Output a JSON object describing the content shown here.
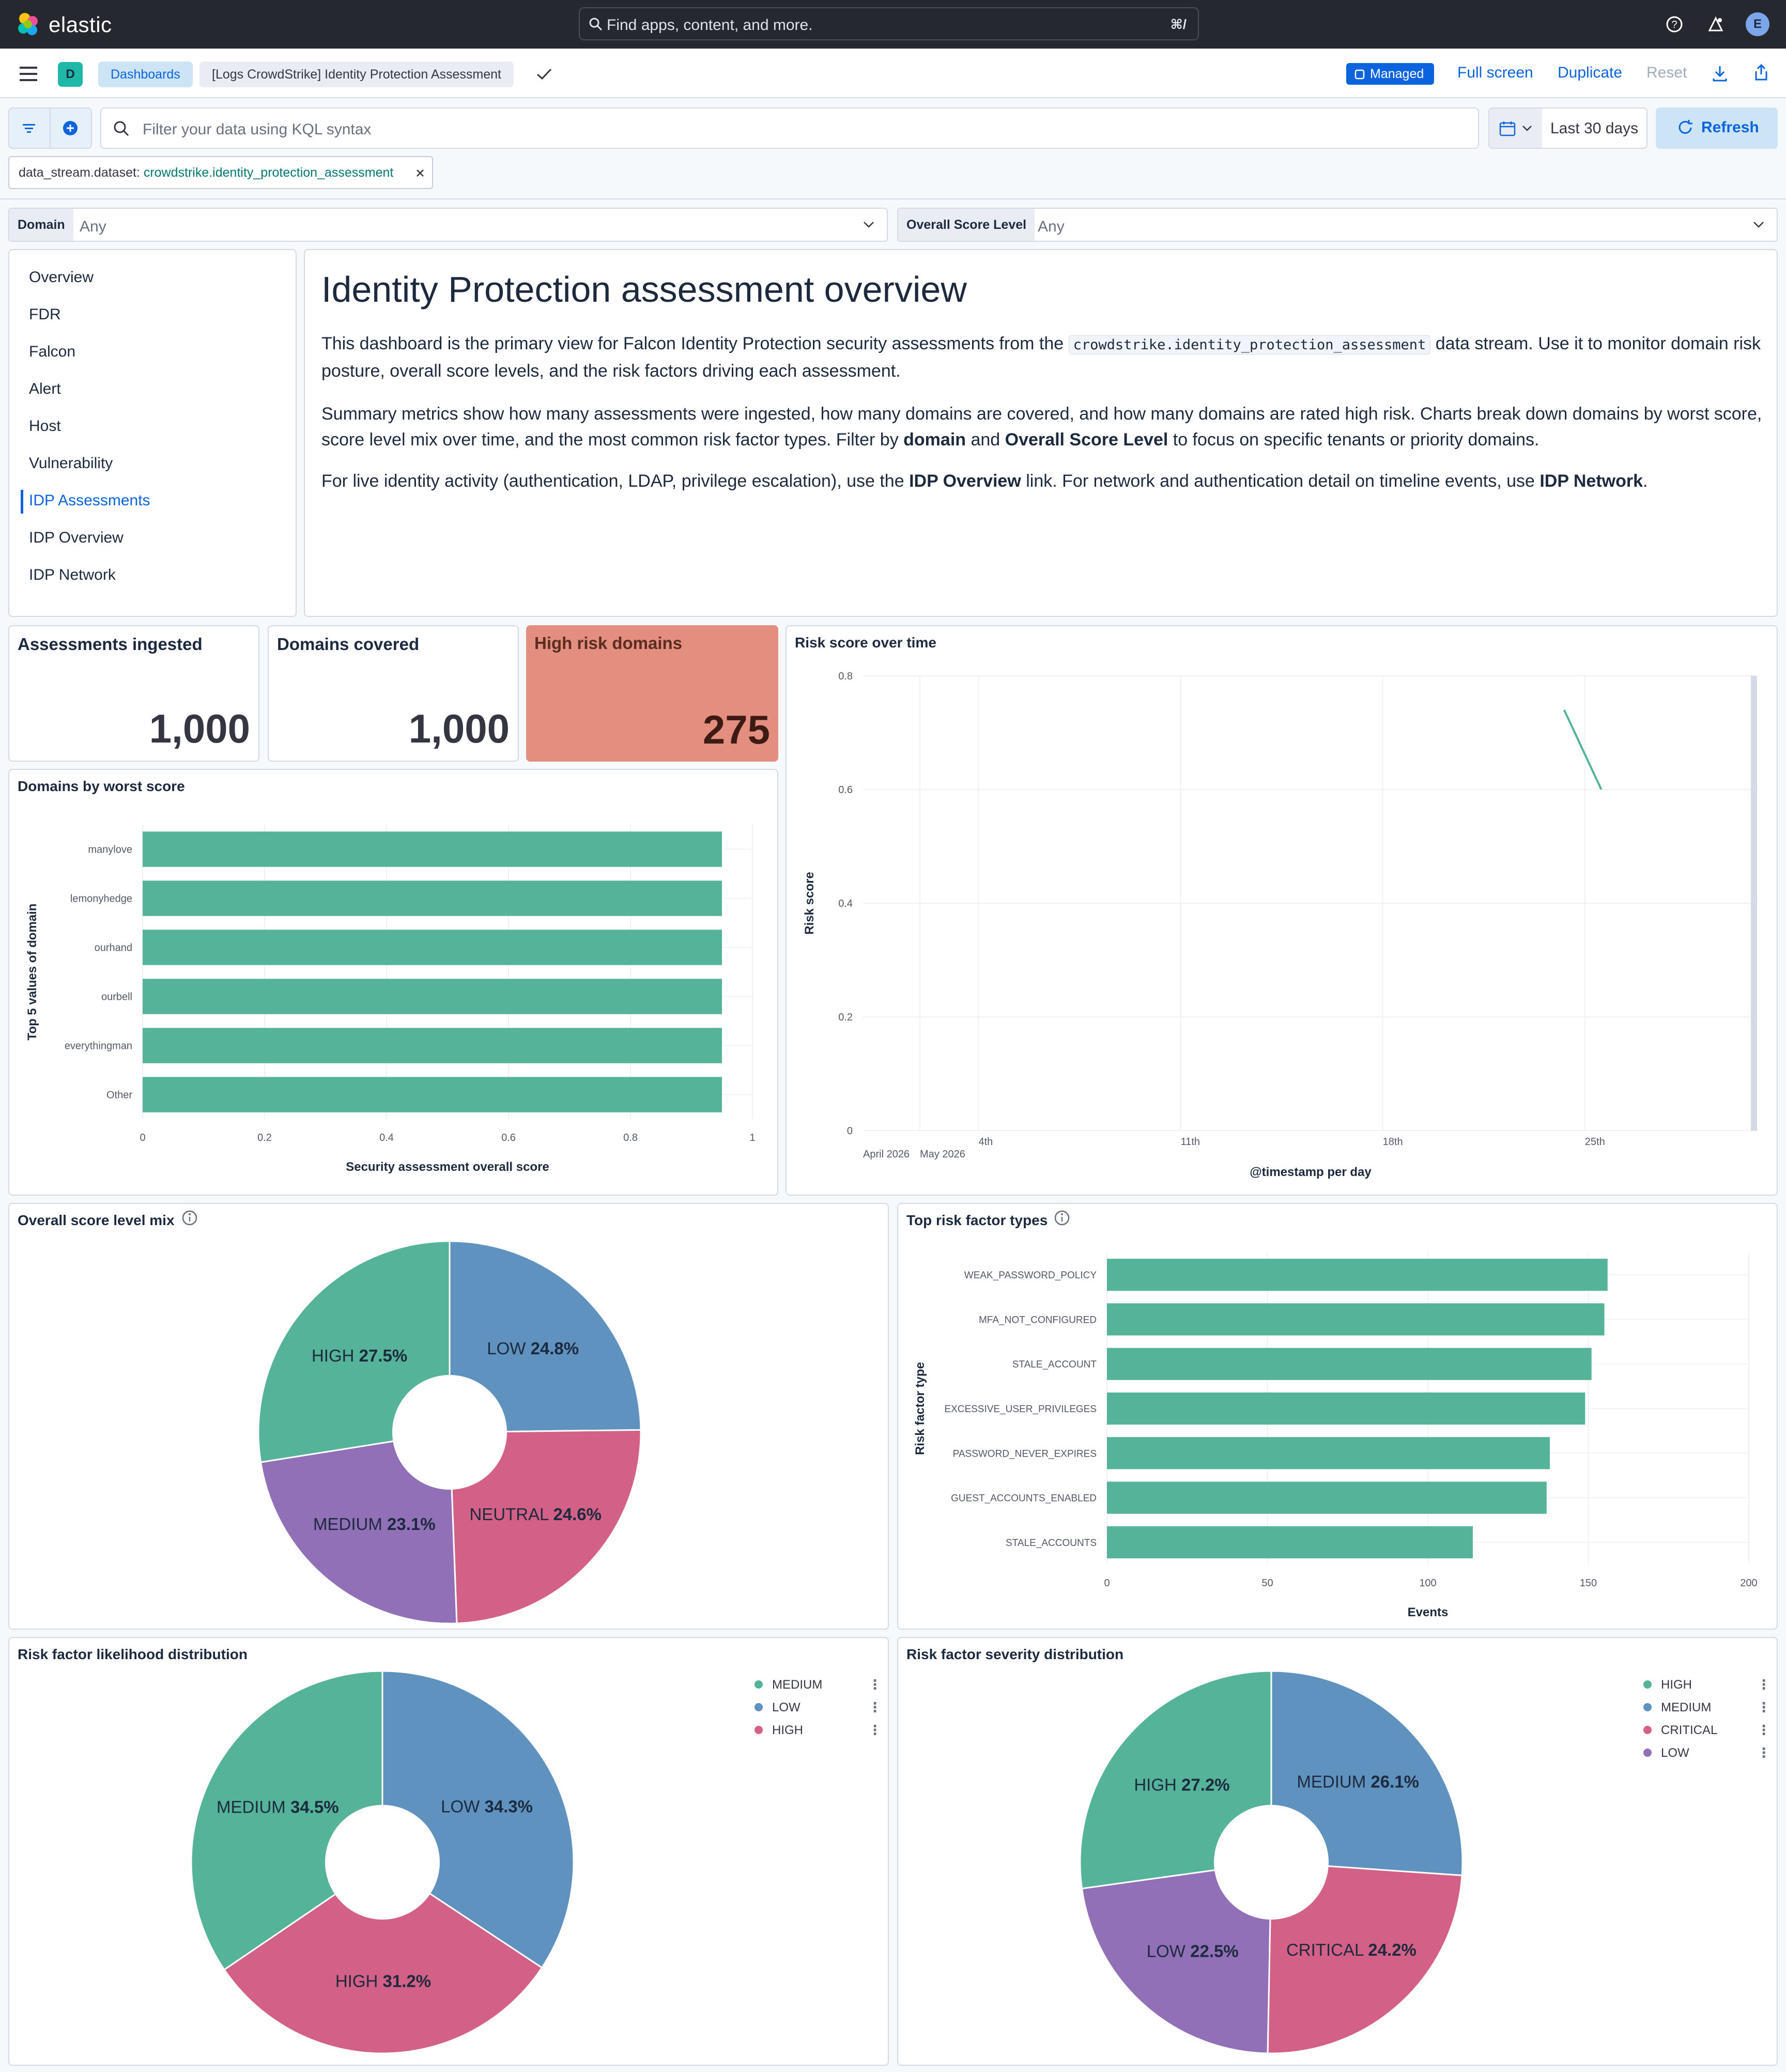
{
  "header": {
    "brand": "elastic",
    "search_placeholder": "Find apps, content, and more.",
    "search_shortcut": "⌘/",
    "avatar_initial": "E"
  },
  "toolbar": {
    "space_initial": "D",
    "breadcrumbs": [
      "Dashboards",
      "[Logs CrowdStrike] Identity Protection Assessment"
    ],
    "managed_label": "Managed",
    "fullscreen_label": "Full screen",
    "duplicate_label": "Duplicate",
    "reset_label": "Reset"
  },
  "query": {
    "placeholder": "Filter your data using KQL syntax",
    "date_range": "Last 30 days",
    "refresh_label": "Refresh",
    "filter_pill": {
      "field": "data_stream.dataset: ",
      "value": "crowdstrike.identity_protection_assessment"
    }
  },
  "controls": [
    {
      "label": "Domain",
      "value": "Any"
    },
    {
      "label": "Overall Score Level",
      "value": "Any"
    }
  ],
  "nav": {
    "items": [
      "Overview",
      "FDR",
      "Falcon",
      "Alert",
      "Host",
      "Vulnerability",
      "IDP Assessments",
      "IDP Overview",
      "IDP Network"
    ],
    "active": "IDP Assessments"
  },
  "markdown": {
    "title": "Identity Protection assessment overview",
    "p1_a": "This dashboard is the primary view for Falcon Identity Protection security assessments from the ",
    "p1_code": "crowdstrike.identity_protection_assessment",
    "p1_b": " data stream. Use it to monitor domain risk posture, overall score levels, and the risk factors driving each assessment.",
    "p2_a": "Summary metrics show how many assessments were ingested, how many domains are covered, and how many domains are rated high risk. Charts break down domains by worst score, score level mix over time, and the most common risk factor types. Filter by ",
    "p2_b1": "domain",
    "p2_and": " and ",
    "p2_b2": "Overall Score Level",
    "p2_c": " to focus on specific tenants or priority domains.",
    "p3_a": "For live identity activity (authentication, LDAP, privilege escalation), use the ",
    "p3_b1": "IDP Overview",
    "p3_mid": " link. For network and authentication detail on timeline events, use ",
    "p3_b2": "IDP Network",
    "p3_end": "."
  },
  "metrics": [
    {
      "title": "Assessments ingested",
      "value": "1,000"
    },
    {
      "title": "Domains covered",
      "value": "1,000"
    },
    {
      "title": "High risk domains",
      "value": "275"
    }
  ],
  "panels": {
    "domains_title": "Domains by worst score",
    "risk_time_title": "Risk score over time",
    "score_mix_title": "Overall score level mix",
    "risk_types_title": "Top risk factor types",
    "likelihood_title": "Risk factor likelihood distribution",
    "severity_title": "Risk factor severity distribution"
  },
  "colors": {
    "green": "#54b399",
    "blue": "#6092c0",
    "pink": "#d36086",
    "purple": "#9170b8",
    "accent": "#0b64dd",
    "high_risk_bg": "#e38e7e"
  },
  "chart_data": [
    {
      "id": "domains",
      "type": "bar",
      "orientation": "horizontal",
      "categories": [
        "manylove",
        "lemonyhedge",
        "ourhand",
        "ourbell",
        "everythingman",
        "Other"
      ],
      "values": [
        0.95,
        0.95,
        0.95,
        0.95,
        0.95,
        0.95
      ],
      "xlabel": "Security assessment overall score",
      "ylabel": "Top 5 values of domain",
      "xlim": [
        0,
        1
      ],
      "xticks": [
        "0",
        "0.2",
        "0.4",
        "0.6",
        "0.8",
        "1"
      ]
    },
    {
      "id": "risk_time",
      "type": "line",
      "x": [
        "2026-05-25",
        "2026-05-26"
      ],
      "y": [
        0.74,
        0.6
      ],
      "ylabel": "Risk score",
      "xlabel": "@timestamp per day",
      "ylim": [
        0,
        0.8
      ],
      "yticks": [
        "0",
        "0.2",
        "0.4",
        "0.6",
        "0.8"
      ],
      "xticks": [
        "4th",
        "11th",
        "18th",
        "25th"
      ],
      "xtick_sub": [
        "April 2026",
        "May 2026"
      ]
    },
    {
      "id": "score_mix",
      "type": "pie",
      "labels": [
        "LOW",
        "NEUTRAL",
        "MEDIUM",
        "HIGH"
      ],
      "values": [
        24.8,
        24.6,
        23.1,
        27.5
      ],
      "label_texts": [
        "24.8%",
        "24.6%",
        "23.1%",
        "27.5%"
      ]
    },
    {
      "id": "risk_types",
      "type": "bar",
      "orientation": "horizontal",
      "categories": [
        "WEAK_PASSWORD_POLICY",
        "MFA_NOT_CONFIGURED",
        "STALE_ACCOUNT",
        "EXCESSIVE_USER_PRIVILEGES",
        "PASSWORD_NEVER_EXPIRES",
        "GUEST_ACCOUNTS_ENABLED",
        "STALE_ACCOUNTS"
      ],
      "values": [
        156,
        155,
        151,
        149,
        138,
        137,
        114
      ],
      "xlabel": "Events",
      "ylabel": "Risk factor type",
      "xlim": [
        0,
        200
      ],
      "xticks": [
        "0",
        "50",
        "100",
        "150",
        "200"
      ]
    },
    {
      "id": "likelihood",
      "type": "pie",
      "labels": [
        "LOW",
        "HIGH",
        "MEDIUM"
      ],
      "values": [
        34.3,
        31.2,
        34.5
      ],
      "label_texts": [
        "34.3%",
        "31.2%",
        "34.5%"
      ],
      "legend": [
        "MEDIUM",
        "LOW",
        "HIGH"
      ]
    },
    {
      "id": "severity",
      "type": "pie",
      "labels": [
        "MEDIUM",
        "CRITICAL",
        "LOW",
        "HIGH"
      ],
      "values": [
        26.1,
        24.2,
        22.5,
        27.2
      ],
      "label_texts": [
        "26.1%",
        "24.2%",
        "22.5%",
        "27.2%"
      ],
      "legend": [
        "HIGH",
        "MEDIUM",
        "CRITICAL",
        "LOW"
      ]
    }
  ]
}
